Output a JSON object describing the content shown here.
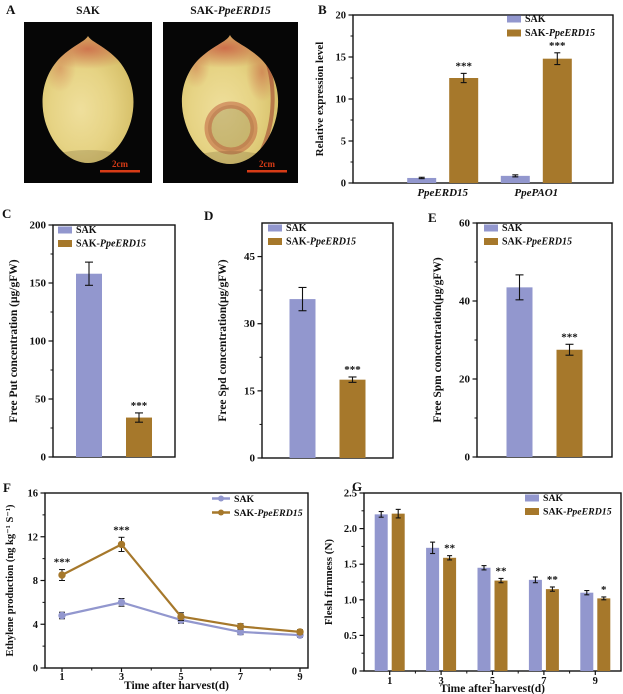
{
  "colors": {
    "sak": "#9297ce",
    "erd15": "#a6782b",
    "axis": "#111111",
    "scalebar": "#d63b16"
  },
  "panel_labels": {
    "A": "A",
    "B": "B",
    "C": "C",
    "D": "D",
    "E": "E",
    "F": "F",
    "G": "G"
  },
  "panel_a": {
    "photos": [
      {
        "title": "SAK",
        "scale_label": "2cm"
      },
      {
        "title": "SAK-PpeERD15",
        "scale_label": "2cm"
      }
    ]
  },
  "chart_data": [
    {
      "id": "B",
      "type": "bar",
      "categories": [
        "PpeERD15",
        "PpePAO1"
      ],
      "series": [
        {
          "name": "SAK",
          "color_key": "sak",
          "values": [
            0.6,
            0.85
          ],
          "errors": [
            0.08,
            0.12
          ]
        },
        {
          "name": "SAK-PpeERD15",
          "color_key": "erd15",
          "values": [
            12.5,
            14.8
          ],
          "errors": [
            0.55,
            0.7
          ]
        }
      ],
      "significance": [
        {
          "series": 1,
          "index": 0,
          "label": "***"
        },
        {
          "series": 1,
          "index": 1,
          "label": "***"
        }
      ],
      "ylabel": "Relative expression level",
      "xlabel": "",
      "ylim": [
        0,
        20
      ],
      "yticks": [
        0,
        5,
        10,
        15,
        20
      ],
      "legend_position": "top-right"
    },
    {
      "id": "C",
      "type": "bar",
      "categories": [
        ""
      ],
      "series": [
        {
          "name": "SAK",
          "color_key": "sak",
          "values": [
            158
          ],
          "errors": [
            10
          ]
        },
        {
          "name": "SAK-PpeERD15",
          "color_key": "erd15",
          "values": [
            34
          ],
          "errors": [
            4
          ]
        }
      ],
      "significance": [
        {
          "series": 1,
          "index": 0,
          "label": "***"
        }
      ],
      "ylabel": "Free Put concentration (μg/gFW)",
      "xlabel": "",
      "ylim": [
        0,
        200
      ],
      "yticks": [
        0,
        50,
        100,
        150,
        200
      ],
      "legend_position": "top-left"
    },
    {
      "id": "D",
      "type": "bar",
      "categories": [
        ""
      ],
      "series": [
        {
          "name": "SAK",
          "color_key": "sak",
          "values": [
            35.5
          ],
          "errors": [
            2.6
          ]
        },
        {
          "name": "SAK-PpeERD15",
          "color_key": "erd15",
          "values": [
            17.5
          ],
          "errors": [
            0.6
          ]
        }
      ],
      "significance": [
        {
          "series": 1,
          "index": 0,
          "label": "***"
        }
      ],
      "ylabel": "Free Spd concentration(μg/gFW)",
      "xlabel": "",
      "ylim": [
        0,
        52.5
      ],
      "yticks": [
        0,
        15,
        30,
        45
      ],
      "legend_position": "top-left"
    },
    {
      "id": "E",
      "type": "bar",
      "categories": [
        ""
      ],
      "series": [
        {
          "name": "SAK",
          "color_key": "sak",
          "values": [
            43.5
          ],
          "errors": [
            3.2
          ]
        },
        {
          "name": "SAK-PpeERD15",
          "color_key": "erd15",
          "values": [
            27.5
          ],
          "errors": [
            1.4
          ]
        }
      ],
      "significance": [
        {
          "series": 1,
          "index": 0,
          "label": "***"
        }
      ],
      "ylabel": "Free Spm concentration(μg/gFW)",
      "xlabel": "",
      "ylim": [
        0,
        60
      ],
      "yticks": [
        0,
        20,
        40,
        60
      ],
      "legend_position": "top-left"
    },
    {
      "id": "F",
      "type": "line",
      "x": [
        1,
        3,
        5,
        7,
        9
      ],
      "series": [
        {
          "name": "SAK",
          "color_key": "sak",
          "values": [
            4.8,
            6.0,
            4.4,
            3.3,
            3.0
          ],
          "errors": [
            0.3,
            0.35,
            0.3,
            0.25,
            0.2
          ]
        },
        {
          "name": "SAK-PpeERD15",
          "color_key": "erd15",
          "values": [
            8.5,
            11.3,
            4.7,
            3.8,
            3.3
          ],
          "errors": [
            0.5,
            0.65,
            0.35,
            0.25,
            0.2
          ]
        }
      ],
      "significance": [
        {
          "series": 1,
          "index": 0,
          "label": "***"
        },
        {
          "series": 1,
          "index": 1,
          "label": "***"
        }
      ],
      "ylabel": "Ethylene production (ng kg⁻¹ S⁻¹)",
      "xlabel": "Time after harvest(d)",
      "ylim": [
        0,
        16
      ],
      "yticks": [
        0,
        4,
        8,
        12,
        16
      ],
      "legend_position": "top-right"
    },
    {
      "id": "G",
      "type": "bar",
      "categories": [
        "1",
        "3",
        "5",
        "7",
        "9"
      ],
      "series": [
        {
          "name": "SAK",
          "color_key": "sak",
          "values": [
            2.2,
            1.73,
            1.45,
            1.28,
            1.1
          ],
          "errors": [
            0.04,
            0.08,
            0.03,
            0.04,
            0.03
          ]
        },
        {
          "name": "SAK-PpeERD15",
          "color_key": "erd15",
          "values": [
            2.21,
            1.59,
            1.27,
            1.15,
            1.02
          ],
          "errors": [
            0.06,
            0.03,
            0.03,
            0.03,
            0.02
          ]
        }
      ],
      "significance": [
        {
          "series": 1,
          "index": 1,
          "label": "**"
        },
        {
          "series": 1,
          "index": 2,
          "label": "**"
        },
        {
          "series": 1,
          "index": 3,
          "label": "**"
        },
        {
          "series": 1,
          "index": 4,
          "label": "*"
        }
      ],
      "ylabel": "Flesh firmness (N)",
      "xlabel": "Time after harvest(d)",
      "ylim": [
        0,
        2.5
      ],
      "yticks": [
        0,
        0.5,
        1,
        1.5,
        2,
        2.5
      ],
      "ytick_labels": [
        "0",
        "0.5",
        "1.0",
        "1.5",
        "2.0",
        "2.5"
      ],
      "legend_position": "top-right"
    }
  ]
}
